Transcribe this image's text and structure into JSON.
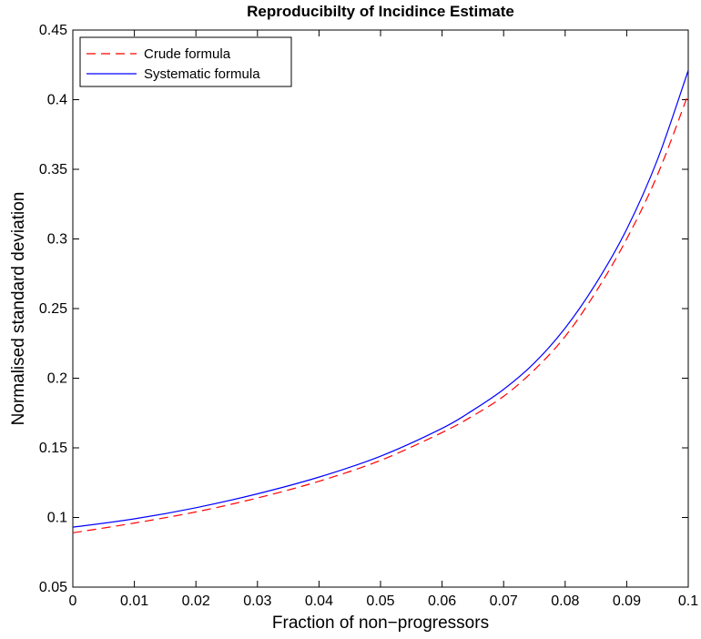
{
  "chart_data": {
    "type": "line",
    "title": "Reproducibilty of Incidince Estimate",
    "xlabel": "Fraction of non−progressors",
    "ylabel": "Normalised standard deviation",
    "xlim": [
      0,
      0.1
    ],
    "ylim": [
      0.05,
      0.45
    ],
    "xticks": [
      0,
      0.01,
      0.02,
      0.03,
      0.04,
      0.05,
      0.06,
      0.07,
      0.08,
      0.09,
      0.1
    ],
    "xtick_labels": [
      "0",
      "0.01",
      "0.02",
      "0.03",
      "0.04",
      "0.05",
      "0.06",
      "0.07",
      "0.08",
      "0.09",
      "0.1"
    ],
    "yticks": [
      0.05,
      0.1,
      0.15,
      0.2,
      0.25,
      0.3,
      0.35,
      0.4,
      0.45
    ],
    "ytick_labels": [
      "0.05",
      "0.1",
      "0.15",
      "0.2",
      "0.25",
      "0.3",
      "0.35",
      "0.4",
      "0.45"
    ],
    "grid": false,
    "legend_position": "top-left",
    "x": [
      0,
      0.01,
      0.02,
      0.03,
      0.04,
      0.05,
      0.06,
      0.065,
      0.07,
      0.075,
      0.08,
      0.085,
      0.09,
      0.095,
      0.1
    ],
    "series": [
      {
        "name": "Crude formula",
        "color": "#ff0000",
        "style": "dashed",
        "values": [
          0.089,
          0.096,
          0.104,
          0.114,
          0.126,
          0.141,
          0.161,
          0.173,
          0.187,
          0.206,
          0.23,
          0.262,
          0.3,
          0.346,
          0.404
        ]
      },
      {
        "name": "Systematic formula",
        "color": "#0000ff",
        "style": "solid",
        "values": [
          0.093,
          0.099,
          0.107,
          0.117,
          0.129,
          0.144,
          0.164,
          0.177,
          0.192,
          0.211,
          0.236,
          0.268,
          0.307,
          0.357,
          0.421
        ]
      }
    ]
  }
}
